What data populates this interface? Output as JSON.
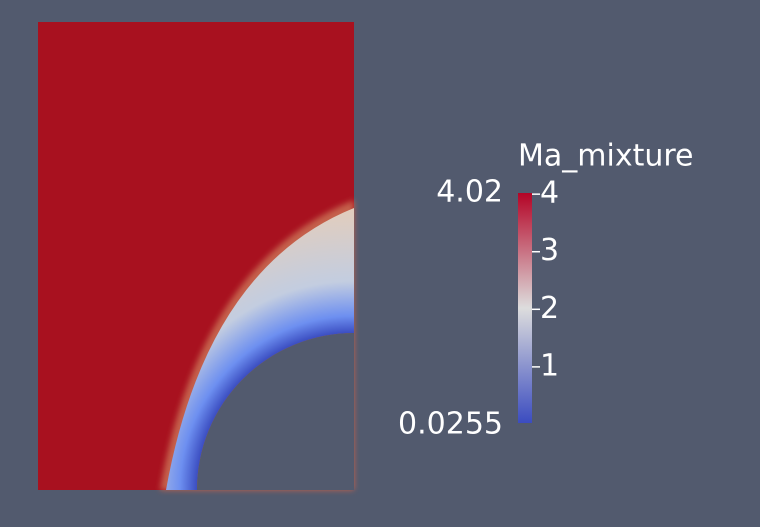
{
  "colorbar": {
    "title": "Ma_mixture",
    "range": [
      0.0255,
      4.02
    ],
    "ticks": [
      1,
      2,
      3,
      4
    ],
    "colors": [
      "#3b4cc0",
      "#dddddd",
      "#b40426"
    ]
  }
}
